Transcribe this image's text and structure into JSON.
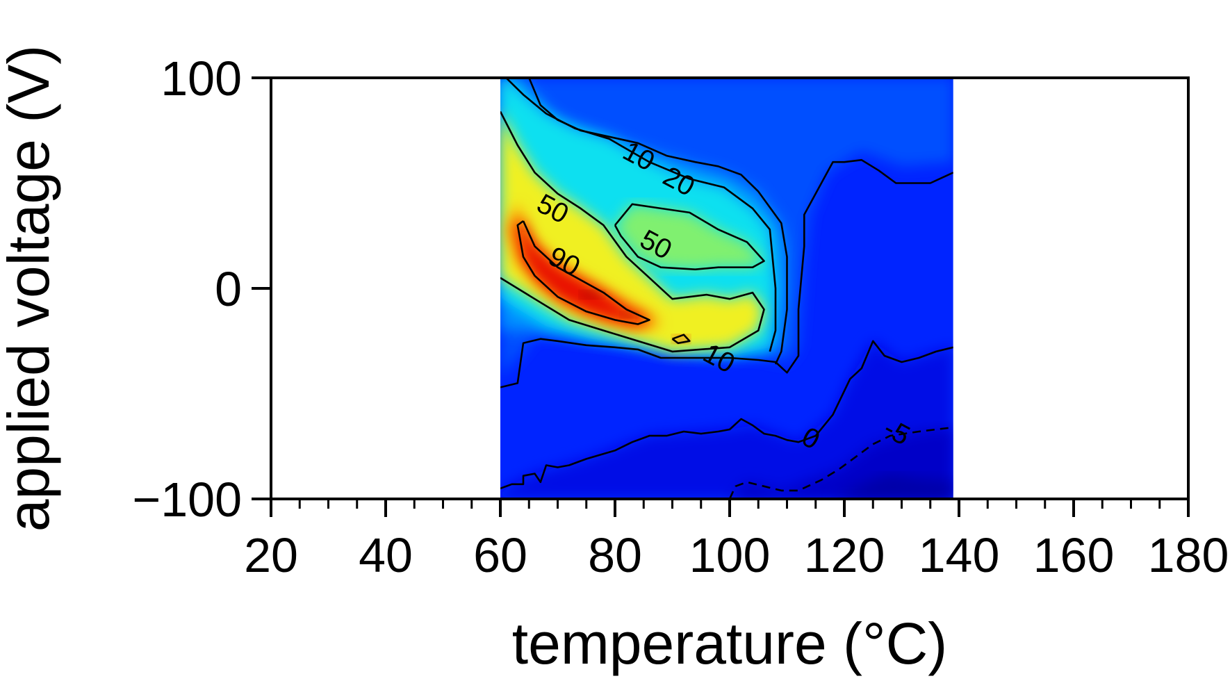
{
  "chart_data": {
    "type": "heatmap",
    "subtype": "filled-contour",
    "xlabel": "temperature (°C)",
    "ylabel": "applied voltage (V)",
    "xlim": [
      20,
      180
    ],
    "ylim": [
      -100,
      100
    ],
    "x_ticks": [
      20,
      40,
      60,
      80,
      100,
      120,
      140,
      160,
      180
    ],
    "x_tick_labels": [
      "20",
      "40",
      "60",
      "80",
      "100",
      "120",
      "140",
      "160",
      "180"
    ],
    "y_ticks": [
      -100,
      0,
      100
    ],
    "y_tick_labels": [
      "−100",
      "0",
      "100"
    ],
    "data_extent": {
      "x": [
        60,
        139
      ],
      "y": [
        -100,
        100
      ]
    },
    "colormap": "jet",
    "colors": {
      "deep_blue": "#0000c8",
      "blue_1": "#0010e6",
      "blue_2": "#0024ff",
      "blue_3": "#0050ff",
      "blue_4": "#0090ff",
      "cyan": "#10e0f0",
      "light_green": "#80f070",
      "yellow": "#f0f020",
      "orange": "#ff8000",
      "red": "#e81000",
      "dark_red": "#a00000"
    },
    "contour_lines": [
      {
        "level": "0",
        "dashed": false,
        "points": [
          [
            60,
            -95
          ],
          [
            62,
            -93
          ],
          [
            64,
            -93
          ],
          [
            64,
            -89
          ],
          [
            66,
            -88
          ],
          [
            67,
            -92
          ],
          [
            68,
            -84
          ],
          [
            70,
            -85
          ],
          [
            72,
            -84
          ],
          [
            75,
            -81
          ],
          [
            80,
            -77
          ],
          [
            83,
            -73
          ],
          [
            86,
            -70
          ],
          [
            89,
            -70
          ],
          [
            92,
            -68
          ],
          [
            95,
            -69
          ],
          [
            98,
            -68
          ],
          [
            100,
            -67
          ],
          [
            102,
            -62
          ],
          [
            104,
            -65
          ],
          [
            106,
            -69
          ],
          [
            108,
            -70
          ],
          [
            110,
            -72
          ],
          [
            112,
            -73
          ],
          [
            115,
            -70
          ],
          [
            118,
            -60
          ],
          [
            121,
            -43
          ],
          [
            123,
            -38
          ],
          [
            125,
            -25
          ],
          [
            127,
            -32
          ],
          [
            130,
            -35
          ],
          [
            133,
            -33
          ],
          [
            136,
            -30
          ],
          [
            139,
            -28
          ]
        ]
      },
      {
        "level": "-5",
        "dashed": true,
        "points": [
          [
            100,
            -100
          ],
          [
            101,
            -94
          ],
          [
            103,
            -92
          ],
          [
            106,
            -94
          ],
          [
            109,
            -96
          ],
          [
            112,
            -96
          ],
          [
            116,
            -91
          ],
          [
            119,
            -86
          ],
          [
            122,
            -80
          ],
          [
            125,
            -74
          ],
          [
            128,
            -70
          ],
          [
            133,
            -68
          ],
          [
            139,
            -66
          ]
        ]
      },
      {
        "level": "10",
        "dashed": false,
        "points": [
          [
            60,
            -47
          ],
          [
            63,
            -45
          ],
          [
            64,
            -26
          ],
          [
            67,
            -24
          ],
          [
            70,
            -25
          ],
          [
            75,
            -27
          ],
          [
            80,
            -28
          ],
          [
            84,
            -29
          ],
          [
            88,
            -33
          ],
          [
            95,
            -33
          ],
          [
            100,
            -33
          ],
          [
            105,
            -34
          ],
          [
            108,
            -35
          ],
          [
            110,
            -40
          ],
          [
            112,
            -32
          ],
          [
            112,
            -10
          ],
          [
            113,
            20
          ],
          [
            113,
            35
          ],
          [
            116,
            50
          ],
          [
            118,
            60
          ],
          [
            120,
            60
          ],
          [
            123,
            61
          ],
          [
            126,
            56
          ],
          [
            129,
            50
          ],
          [
            132,
            50
          ],
          [
            135,
            50
          ],
          [
            139,
            55
          ]
        ]
      },
      {
        "level": "10",
        "dashed": false,
        "points": [
          [
            65,
            100
          ],
          [
            67,
            87
          ],
          [
            70,
            80
          ],
          [
            74,
            75
          ],
          [
            79,
            72
          ],
          [
            84,
            69
          ],
          [
            89,
            63
          ],
          [
            94,
            60
          ],
          [
            98,
            58
          ],
          [
            102,
            54
          ],
          [
            105,
            46
          ],
          [
            109,
            31
          ],
          [
            110,
            15
          ],
          [
            110,
            -10
          ],
          [
            109,
            -30
          ],
          [
            108,
            -36
          ]
        ]
      },
      {
        "level": "20",
        "dashed": false,
        "points": [
          [
            61,
            100
          ],
          [
            64,
            92
          ],
          [
            68,
            83
          ],
          [
            73,
            76
          ],
          [
            79,
            71
          ],
          [
            86,
            60
          ],
          [
            93,
            52
          ],
          [
            99,
            48
          ],
          [
            104,
            38
          ],
          [
            107,
            28
          ],
          [
            108,
            0
          ],
          [
            108,
            -20
          ],
          [
            107,
            -30
          ]
        ]
      },
      {
        "level": "50",
        "dashed": false,
        "points": [
          [
            60,
            84
          ],
          [
            63,
            68
          ],
          [
            66,
            55
          ],
          [
            70,
            45
          ],
          [
            74,
            38
          ],
          [
            78,
            30
          ],
          [
            82,
            15
          ],
          [
            86,
            5
          ],
          [
            90,
            -5
          ],
          [
            96,
            -3
          ],
          [
            100,
            -5
          ],
          [
            104,
            -2
          ],
          [
            106,
            -10
          ],
          [
            105,
            -20
          ],
          [
            100,
            -28
          ],
          [
            90,
            -30
          ],
          [
            84,
            -25
          ],
          [
            78,
            -20
          ],
          [
            72,
            -15
          ],
          [
            66,
            -5
          ],
          [
            60,
            5
          ]
        ]
      },
      {
        "level": "50",
        "dashed": false,
        "points": [
          [
            80,
            30
          ],
          [
            83,
            40
          ],
          [
            88,
            38
          ],
          [
            93,
            36
          ],
          [
            98,
            28
          ],
          [
            103,
            22
          ],
          [
            106,
            13
          ],
          [
            104,
            10
          ],
          [
            98,
            10
          ],
          [
            94,
            9
          ],
          [
            88,
            10
          ],
          [
            84,
            15
          ],
          [
            81,
            25
          ],
          [
            80,
            30
          ]
        ]
      },
      {
        "level": "90",
        "dashed": false,
        "points": [
          [
            64,
            32
          ],
          [
            66,
            20
          ],
          [
            70,
            10
          ],
          [
            74,
            4
          ],
          [
            78,
            -2
          ],
          [
            82,
            -10
          ],
          [
            86,
            -15
          ],
          [
            84,
            -17
          ],
          [
            80,
            -15
          ],
          [
            75,
            -11
          ],
          [
            70,
            -4
          ],
          [
            66,
            6
          ],
          [
            64,
            15
          ],
          [
            63,
            30
          ],
          [
            64,
            32
          ]
        ]
      },
      {
        "level": "90",
        "dashed": false,
        "points": [
          [
            90,
            -24
          ],
          [
            92,
            -22
          ],
          [
            93,
            -25
          ],
          [
            91,
            -26
          ],
          [
            90,
            -24
          ]
        ]
      }
    ],
    "contour_labels": [
      {
        "text": "10",
        "x": 84,
        "y": 62
      },
      {
        "text": "20",
        "x": 91,
        "y": 50
      },
      {
        "text": "50",
        "x": 69,
        "y": 37
      },
      {
        "text": "50",
        "x": 87,
        "y": 20
      },
      {
        "text": "90",
        "x": 71,
        "y": 12
      },
      {
        "text": "10",
        "x": 98,
        "y": -34
      },
      {
        "text": "0",
        "x": 114,
        "y": -72
      },
      {
        "text": "-5",
        "x": 129,
        "y": -69
      }
    ]
  }
}
